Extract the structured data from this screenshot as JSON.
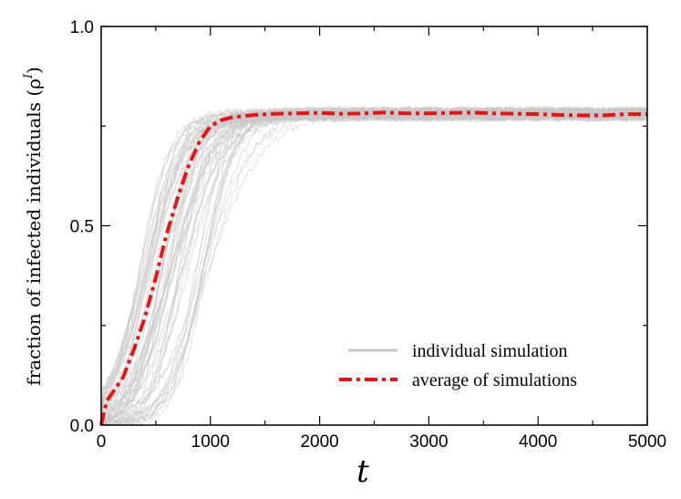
{
  "chart_data": {
    "type": "line",
    "xlabel": "t",
    "ylabel": "fraction of infected individuals (ρ",
    "ylabel_superscript": "I",
    "ylabel_close": ")",
    "xlim": [
      0,
      5000
    ],
    "ylim": [
      0,
      1.0
    ],
    "xticks": [
      0,
      1000,
      2000,
      3000,
      4000,
      5000
    ],
    "xtick_labels": [
      "0",
      "1000",
      "2000",
      "3000",
      "4000",
      "5000"
    ],
    "yticks": [
      0,
      0.5,
      1.0
    ],
    "ytick_labels": [
      "0.0",
      "0.5",
      "1.0"
    ],
    "grid": false,
    "legend_position": "bottom-right",
    "individual_series": {
      "name": "individual simulation",
      "color": "#c8c8c8",
      "count": 60,
      "plateau": 0.78,
      "takeoff_range": [
        350,
        1000
      ],
      "noise": 0.02
    },
    "series": [
      {
        "name": "average of simulations",
        "color": "#ee1111",
        "style": "dash-dot",
        "x": [
          0,
          50,
          100,
          200,
          300,
          400,
          500,
          600,
          700,
          800,
          900,
          1000,
          1100,
          1200,
          1400,
          1600,
          1800,
          2000,
          2200,
          2400,
          2600,
          2800,
          3000,
          3200,
          3400,
          3600,
          3800,
          4000,
          4200,
          4400,
          4600,
          4800,
          5000
        ],
        "y": [
          0.0,
          0.06,
          0.08,
          0.12,
          0.19,
          0.27,
          0.37,
          0.48,
          0.57,
          0.65,
          0.71,
          0.75,
          0.765,
          0.772,
          0.778,
          0.781,
          0.782,
          0.783,
          0.781,
          0.782,
          0.784,
          0.782,
          0.782,
          0.783,
          0.784,
          0.782,
          0.781,
          0.78,
          0.778,
          0.777,
          0.777,
          0.78,
          0.78
        ]
      }
    ]
  }
}
